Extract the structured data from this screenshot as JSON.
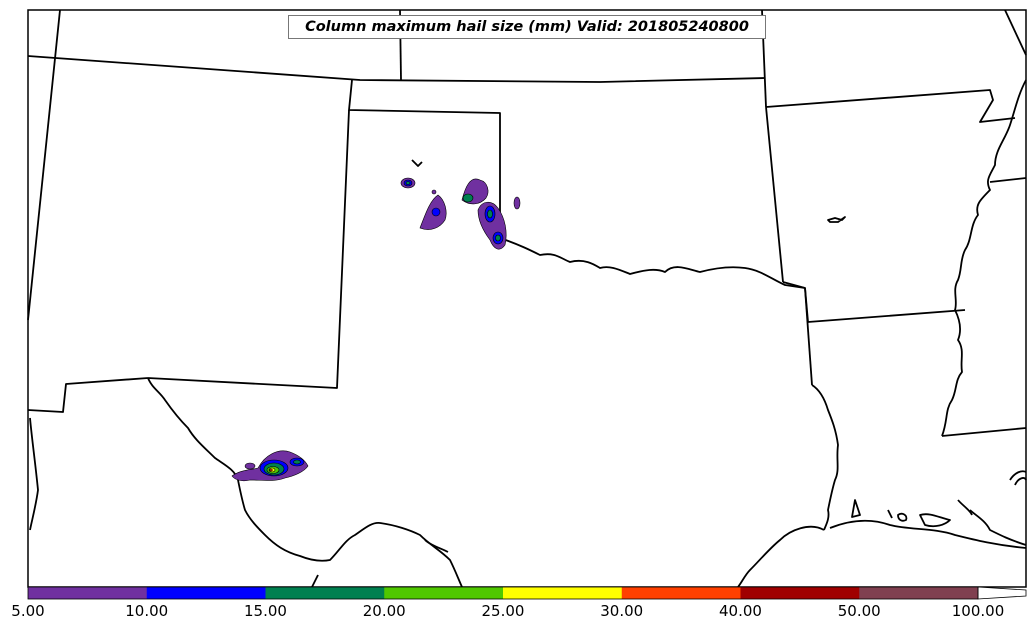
{
  "title": "Column maximum hail size (mm) Valid: 201805240800",
  "colorbar": {
    "labels": [
      "5.00",
      "10.00",
      "15.00",
      "20.00",
      "25.00",
      "30.00",
      "40.00",
      "50.00",
      "100.00"
    ],
    "colors": [
      "#7030a0",
      "#0000ff",
      "#008050",
      "#50c800",
      "#ffff00",
      "#ff4000",
      "#a00000",
      "#804050"
    ]
  }
}
